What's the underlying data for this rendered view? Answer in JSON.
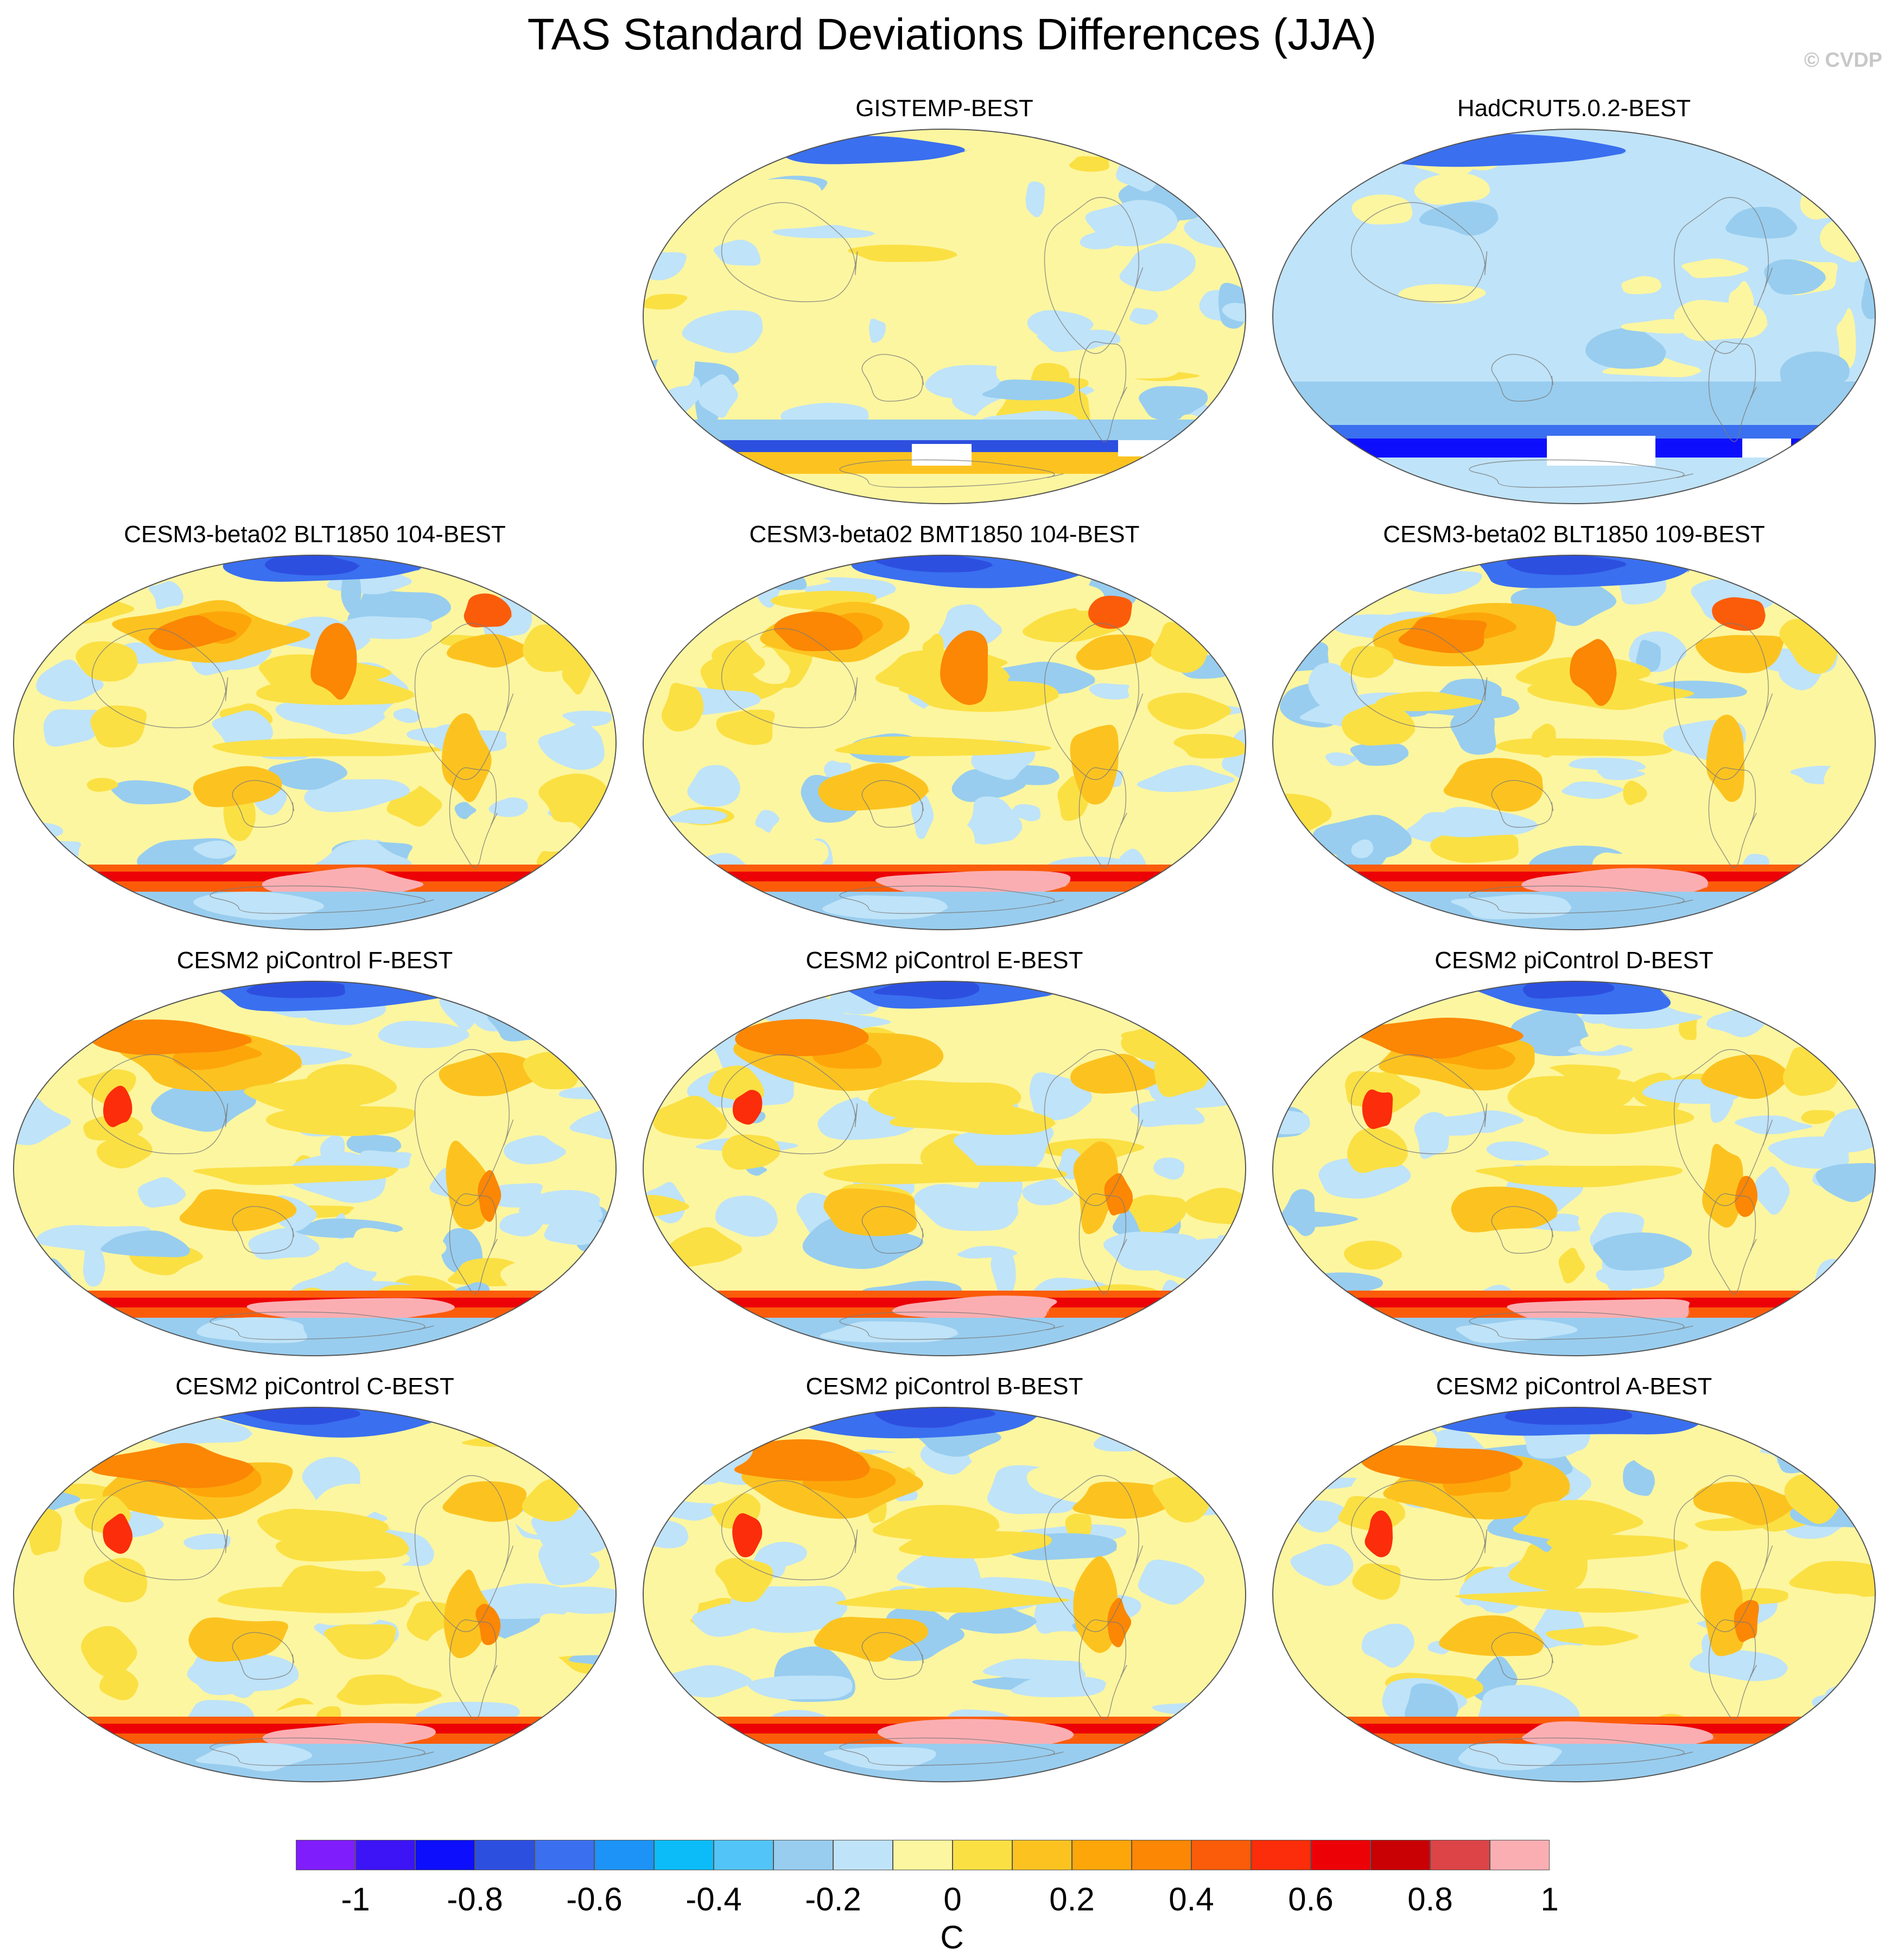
{
  "title": "TAS Standard Deviations Differences (JJA)",
  "copyright": "© CVDP",
  "panels": [
    {
      "label": "GISTEMP-BEST",
      "kind": "obs",
      "slot": 1
    },
    {
      "label": "HadCRUT5.0.2-BEST",
      "kind": "obs2",
      "slot": 2
    },
    {
      "label": "CESM3-beta02 BLT1850 104-BEST",
      "kind": "model",
      "slot": 3
    },
    {
      "label": "CESM3-beta02 BMT1850 104-BEST",
      "kind": "model",
      "slot": 4
    },
    {
      "label": "CESM3-beta02 BLT1850 109-BEST",
      "kind": "model",
      "slot": 5
    },
    {
      "label": "CESM2 piControl F-BEST",
      "kind": "model2",
      "slot": 6
    },
    {
      "label": "CESM2 piControl E-BEST",
      "kind": "model2",
      "slot": 7
    },
    {
      "label": "CESM2 piControl D-BEST",
      "kind": "model2",
      "slot": 8
    },
    {
      "label": "CESM2 piControl C-BEST",
      "kind": "model2",
      "slot": 9
    },
    {
      "label": "CESM2 piControl B-BEST",
      "kind": "model2",
      "slot": 10
    },
    {
      "label": "CESM2 piControl A-BEST",
      "kind": "model2",
      "slot": 11
    }
  ],
  "colorbar": {
    "colors": [
      "#7f1dfd",
      "#3d14f6",
      "#0d0ffc",
      "#2d4fe0",
      "#3a6fef",
      "#1d93f7",
      "#0bbcf9",
      "#53c4f7",
      "#98cdef",
      "#bfe3f8",
      "#fdf6a0",
      "#fbe044",
      "#fcc320",
      "#fda60a",
      "#fb8704",
      "#fb5c0a",
      "#fb2d0a",
      "#ec0107",
      "#c90004",
      "#dd4447",
      "#fbaeb2"
    ],
    "tick_labels": [
      "-1",
      "-0.8",
      "-0.6",
      "-0.4",
      "-0.2",
      "0",
      "0.2",
      "0.4",
      "0.6",
      "0.8",
      "1"
    ],
    "units": "C"
  }
}
